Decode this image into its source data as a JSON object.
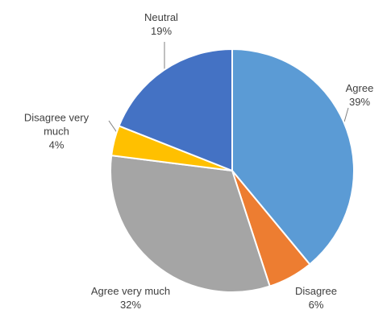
{
  "chart_data": {
    "type": "pie",
    "categories": [
      "Agree",
      "Disagree",
      "Agree very much",
      "Disagree very much",
      "Neutral"
    ],
    "values": [
      39,
      6,
      32,
      4,
      19
    ],
    "value_labels": [
      "39%",
      "6%",
      "32%",
      "4%",
      "19%"
    ],
    "colors": [
      "#5b9bd5",
      "#ed7d31",
      "#a5a5a5",
      "#ffc000",
      "#4472c4"
    ]
  }
}
